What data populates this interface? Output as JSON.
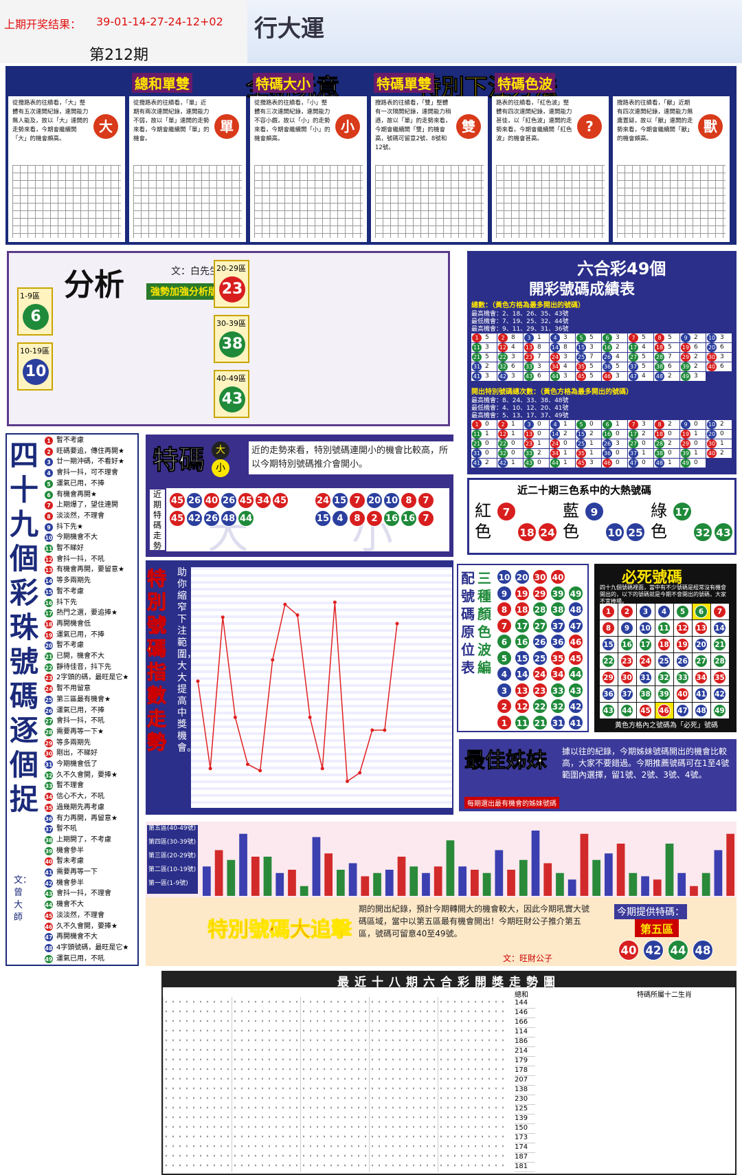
{
  "header": {
    "result_label": "上期开奖结果：",
    "result": "39-01-14-27-24-12+02",
    "issue": "第212期",
    "brand": "行大運"
  },
  "banner": {
    "slogan": "全新玩意",
    "method": "特別下注方法"
  },
  "ball_colors": [
    {
      "color": "#d81e1e",
      "numbers": [
        1,
        2,
        7,
        8,
        12,
        13,
        18,
        19,
        23,
        24,
        29,
        30,
        34,
        35,
        40,
        45,
        46
      ]
    },
    {
      "color": "#2b3f9e",
      "numbers": [
        3,
        4,
        9,
        10,
        14,
        15,
        20,
        25,
        26,
        31,
        36,
        37,
        41,
        42,
        47,
        48
      ]
    },
    {
      "color": "#1f8a3a",
      "numbers": [
        5,
        6,
        11,
        16,
        17,
        21,
        22,
        27,
        28,
        32,
        33,
        38,
        39,
        43,
        44,
        49
      ]
    }
  ],
  "panels": [
    {
      "desc": "從攪路表的往績看，「大」整體有五次連開紀錄，連開能力無人能及，故以「大」連開的走勢來看，今期會繼續開「大」的機會頗高。",
      "badge": "大"
    },
    {
      "title": "總和單雙",
      "desc": "從攪路表的往績看，「單」近期有兩次連開紀錄，連開能力不弱，故以「單」連開的走勢來看，今期會繼續開「單」的機會。",
      "badge": "單"
    },
    {
      "title": "特碼大小",
      "desc": "從攪路表的往績看，「小」整體有三次連開紀錄，連開能力不容小覷，故以「小」的走勢來看，今期會繼續開「小」的機會頗高。",
      "badge": "小"
    },
    {
      "title": "特碼單雙",
      "desc": "攪路表的往績看，「雙」整體有一次隔開紀錄，連開能力稍遜，故以「單」的走勢來看，今期會繼續開「雙」的機會高，號碼可留意2號、8號和12號。",
      "badge": "雙"
    },
    {
      "title": "特碼色波",
      "desc": "路表的往績看，「紅色波」整體有四次連開紀錄，連開能力甚佳，以「紅色波」連開的走勢來看，今期會繼續開「紅色波」的機會甚高。",
      "badge": "?"
    },
    {
      "desc": "攪路表的往績看，「獸」近期有四次連開紀錄，連開能力無庸置疑，故以「獸」連開的走勢來看，今期會繼續開「獸」的機會頗高。",
      "badge": "獸"
    }
  ],
  "analysis": {
    "title": "分析",
    "author": "文：白先生",
    "subtitle": "強勢加強分析版",
    "zones": [
      {
        "label": "1-9區",
        "number": 6
      },
      {
        "label": "10-19區",
        "number": 10
      },
      {
        "label": "20-29區",
        "number": 23
      },
      {
        "label": "30-39區",
        "number": 38
      },
      {
        "label": "40-49區",
        "number": 43
      }
    ]
  },
  "score_table": {
    "title": "六合彩49個",
    "subtitle": "開彩號碼成績表",
    "numbers": [
      1,
      2,
      3,
      4,
      5,
      6,
      7,
      8,
      9,
      10,
      11,
      12,
      13,
      14,
      15,
      16,
      17,
      18,
      19,
      20,
      21,
      22,
      23,
      24,
      25,
      26,
      27,
      28,
      29,
      30,
      31,
      32,
      33,
      34,
      35,
      36,
      37,
      38,
      39,
      40,
      41,
      42,
      43,
      44,
      45,
      46,
      47,
      48,
      49
    ],
    "tables": [
      {
        "heading": "總數：（黃色方格為最多開出的號碼）",
        "lines": [
          "最高機會：2、18、26、35、43號",
          "最低機會：7、19、25、32、44號",
          "最高機會：9、11、29、31、36號"
        ],
        "counts": [
          5,
          8,
          1,
          3,
          5,
          3,
          5,
          5,
          2,
          3,
          3,
          4,
          8,
          8,
          3,
          2,
          4,
          5,
          6,
          6,
          5,
          3,
          7,
          3,
          7,
          4,
          5,
          7,
          2,
          3,
          2,
          6,
          3,
          4,
          5,
          5,
          5,
          6,
          2,
          6,
          3,
          3,
          6,
          3,
          5,
          3,
          4,
          2,
          3
        ]
      },
      {
        "heading": "開出特別號碼總次數：（黃色方格為最多開出的號碼）",
        "lines": [
          "最高機會：8、24、33、38、48號",
          "最低機會：4、10、12、20、41號",
          "最高機會：5、13、17、37、49號"
        ],
        "counts": [
          0,
          1,
          0,
          1,
          0,
          1,
          3,
          2,
          0,
          2,
          1,
          1,
          0,
          2,
          2,
          0,
          2,
          0,
          1,
          0,
          0,
          0,
          1,
          0,
          1,
          3,
          0,
          2,
          0,
          1,
          0,
          0,
          2,
          1,
          1,
          0,
          1,
          0,
          1,
          2,
          2,
          1,
          0,
          1,
          3,
          0,
          0,
          1,
          0
        ]
      }
    ]
  },
  "ball_list": {
    "title": "四十九個彩珠號碼逐個捉",
    "author": "文：曾大師",
    "numbers": [
      1,
      2,
      3,
      4,
      5,
      6,
      7,
      8,
      9,
      10,
      11,
      12,
      13,
      14,
      15,
      16,
      17,
      18,
      19,
      20,
      21,
      22,
      23,
      24,
      25,
      26,
      27,
      28,
      29,
      30,
      31,
      32,
      33,
      34,
      35,
      36,
      37,
      38,
      39,
      40,
      41,
      42,
      43,
      44,
      45,
      46,
      47,
      48,
      49
    ],
    "items": [
      "暫不考慮",
      "旺碼要追，傳住再開★",
      "廿一期沖碼，不看好★",
      "會抖一抖，可不理會",
      "運氣已用，不捧",
      "有機會再開★",
      "上期爆了，望住連開",
      "淡淡然，不理會",
      "抖下先★",
      "今期機會不大",
      "暫不睇好",
      "會抖一抖，不吼",
      "有機會再開，要留意★",
      "等多兩期先",
      "暫不考慮",
      "抖下先",
      "熱門之選，要追捧★",
      "再開機會低",
      "運氣已用，不捧",
      "暫不考慮",
      "已開，機會不大",
      "靜待佳音，抖下先",
      "2字頭的碼，最旺是它★",
      "暫不用留意",
      "第三區最有機會★",
      "運氣已用，不捧",
      "會抖一抖，不吼",
      "需要再等一下★",
      "等多兩期先",
      "剛出，不睇好",
      "今期機會低了",
      "久不久會開，要捧★",
      "暫不理會",
      "信心不大，不吼",
      "過幾期先再考慮",
      "有力再開，再留意★",
      "暫不吼",
      "上期開了，不考慮",
      "機會參半",
      "暫未考慮",
      "需要再等一下",
      "機會參半",
      "會抖一抖，不理會",
      "機會不大",
      "淡淡然，不理會",
      "久不久會開，要捧★",
      "再開機會不大",
      "4字頭號碼，最旺是它★",
      "運氣已用，不吼"
    ]
  },
  "special": {
    "title": "特碼",
    "big": "大",
    "small": "小",
    "text": "近的走勢來看，特別號碼連開小的機會比較高，所以今期特別號碼推介會開小。",
    "trend_label": "近期特碼走勢",
    "big_rows": [
      [
        45,
        26,
        40,
        26,
        45,
        34,
        45
      ],
      [
        45,
        42,
        26,
        48,
        44
      ]
    ],
    "small_rows": [
      [
        24,
        15,
        7,
        20,
        10,
        8,
        7
      ],
      [
        15,
        4,
        8,
        2,
        16,
        16,
        7
      ]
    ]
  },
  "index_chart": {
    "title": "特別號碼指數走勢",
    "note": "助你縮窄下注範圍，大大提高中獎機會。",
    "ylim": [
      0,
      10
    ],
    "values": [
      5.3,
      1.2,
      8.3,
      3.6,
      1.4,
      1.1,
      6.3,
      8.9,
      8.4,
      3.6,
      1.2,
      9.0,
      0.6,
      1.0,
      3.0,
      3.0,
      8.0
    ]
  },
  "hot_colors": {
    "title": "近二十期三色系中的大熱號碼",
    "groups": [
      {
        "name": "紅色",
        "numbers": [
          7,
          18,
          24
        ]
      },
      {
        "name": "藍色",
        "numbers": [
          9,
          10,
          25
        ]
      },
      {
        "name": "綠色",
        "numbers": [
          17,
          32,
          43
        ]
      }
    ]
  },
  "color_table": {
    "title": "配號碼原位表",
    "subtitle": "三種顏色波編",
    "rows": [
      [
        10,
        20,
        30,
        40
      ],
      [
        9,
        19,
        29,
        39,
        49
      ],
      [
        8,
        18,
        28,
        38,
        48
      ],
      [
        7,
        17,
        27,
        37,
        47
      ],
      [
        6,
        16,
        26,
        36,
        46
      ],
      [
        5,
        15,
        25,
        35,
        45
      ],
      [
        4,
        14,
        24,
        34,
        44
      ],
      [
        3,
        13,
        23,
        33,
        43
      ],
      [
        2,
        12,
        22,
        32,
        42
      ],
      [
        1,
        11,
        21,
        31,
        41
      ]
    ]
  },
  "death": {
    "title": "必死號碼",
    "note": "四十九個號碼裡面，當中有不少號碼是經常沒有機會開出的，以下的號碼就是今期不會開出的號碼，大家不宜捧場。",
    "numbers": [
      1,
      2,
      3,
      4,
      5,
      6,
      7,
      8,
      9,
      10,
      11,
      12,
      13,
      14,
      15,
      16,
      17,
      18,
      19,
      20,
      21,
      22,
      23,
      24,
      25,
      26,
      27,
      28,
      29,
      30,
      31,
      32,
      33,
      34,
      35,
      36,
      37,
      38,
      39,
      40,
      41,
      42,
      43,
      44,
      45,
      46,
      47,
      48,
      49
    ],
    "highlighted": [
      6,
      46
    ],
    "footer": "黃色方格內之號碼為「必死」號碼"
  },
  "sister": {
    "title": "最佳姊妹",
    "text": "據以往的紀錄，今期姊妹號碼開出的機會比較高，大家不要錯過。今期推薦號碼可在1至4號範圍內選擇，留1號、2號、3號、4號。",
    "caption": "每期選出最有機會的姊妹號碼"
  },
  "zone_bars": {
    "zones": [
      "第五區(40-49號)",
      "第四區(30-39號)",
      "第三區(20-29號)",
      "第二區(10-19號)",
      "第一區(1-9號)"
    ],
    "colors": [
      "#3b3fb0",
      "#d22a2a",
      "#2a8a3a"
    ],
    "ylim": [
      0,
      100
    ],
    "values": [
      45,
      70,
      55,
      95,
      60,
      60,
      35,
      40,
      15,
      90,
      65,
      40,
      50,
      30,
      35,
      40,
      60,
      45,
      35,
      45,
      85,
      45,
      40,
      35,
      70,
      40,
      55,
      100,
      50,
      35,
      25,
      95,
      55,
      65,
      80,
      35,
      30,
      25,
      80,
      35,
      15,
      35,
      70,
      95
    ]
  },
  "chase": {
    "title": "特別號碼大追擊",
    "text": "期的開出紀錄，預計今期轉開大的機會較大，因此今期吼實大號碼區域，當中以第五區最有機會開出！今期旺財公子推介第五區，號碼可留意40至49號。",
    "author": "文：旺財公子",
    "pick_label": "今期提供特碼：",
    "pick_zone": "第五區",
    "numbers": [
      40,
      42,
      44,
      48
    ]
  },
  "trend": {
    "title": "最近十八期六合彩開獎走勢圖",
    "sum_label": "總和",
    "sums": [
      144,
      146,
      166,
      114,
      186,
      214,
      179,
      178,
      207,
      138,
      230,
      125,
      139,
      150,
      173,
      174,
      187,
      181
    ],
    "zodiac_label": "特碼所屬十二生肖"
  }
}
